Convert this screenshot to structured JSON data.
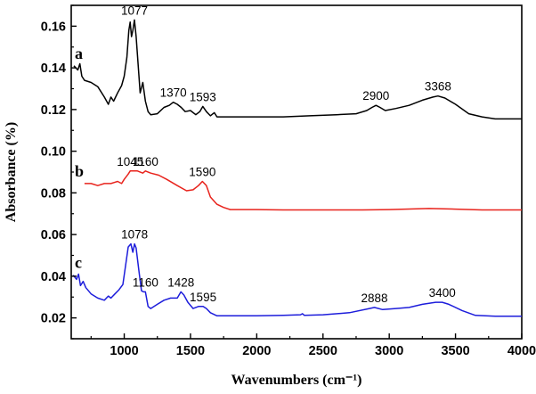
{
  "chart_data": {
    "type": "line",
    "xlabel": "Wavenumbers (cm⁻¹)",
    "ylabel": "Absorbance (%)",
    "xlim": [
      600,
      4000
    ],
    "ylim": [
      0.01,
      0.17
    ],
    "x_ticks": [
      1000,
      1500,
      2000,
      2500,
      3000,
      3500,
      4000
    ],
    "x_tick_labels": [
      "1000",
      "1500",
      "2000",
      "2500",
      "3000",
      "3500",
      "4000"
    ],
    "y_ticks": [
      0.02,
      0.04,
      0.06,
      0.08,
      0.1,
      0.12,
      0.14,
      0.16
    ],
    "y_tick_labels": [
      "0.02",
      "0.04",
      "0.06",
      "0.08",
      "0.10",
      "0.12",
      "0.14",
      "0.16"
    ],
    "grid": false,
    "legend": "none",
    "series": [
      {
        "label": "a",
        "color": "#000000",
        "points": [
          [
            620,
            0.141
          ],
          [
            650,
            0.139
          ],
          [
            665,
            0.142
          ],
          [
            680,
            0.136
          ],
          [
            700,
            0.134
          ],
          [
            750,
            0.133
          ],
          [
            800,
            0.131
          ],
          [
            850,
            0.126
          ],
          [
            880,
            0.1225
          ],
          [
            900,
            0.126
          ],
          [
            920,
            0.124
          ],
          [
            950,
            0.128
          ],
          [
            980,
            0.1315
          ],
          [
            1000,
            0.136
          ],
          [
            1020,
            0.145
          ],
          [
            1035,
            0.158
          ],
          [
            1045,
            0.162
          ],
          [
            1055,
            0.155
          ],
          [
            1065,
            0.158
          ],
          [
            1077,
            0.163
          ],
          [
            1090,
            0.155
          ],
          [
            1100,
            0.146
          ],
          [
            1120,
            0.128
          ],
          [
            1140,
            0.133
          ],
          [
            1160,
            0.124
          ],
          [
            1180,
            0.119
          ],
          [
            1200,
            0.1175
          ],
          [
            1250,
            0.118
          ],
          [
            1300,
            0.121
          ],
          [
            1340,
            0.122
          ],
          [
            1370,
            0.1235
          ],
          [
            1400,
            0.1225
          ],
          [
            1430,
            0.121
          ],
          [
            1460,
            0.119
          ],
          [
            1500,
            0.1195
          ],
          [
            1540,
            0.1175
          ],
          [
            1570,
            0.119
          ],
          [
            1593,
            0.1215
          ],
          [
            1620,
            0.119
          ],
          [
            1650,
            0.117
          ],
          [
            1680,
            0.1185
          ],
          [
            1700,
            0.1165
          ],
          [
            1800,
            0.1165
          ],
          [
            2000,
            0.1165
          ],
          [
            2200,
            0.1165
          ],
          [
            2400,
            0.117
          ],
          [
            2600,
            0.1175
          ],
          [
            2750,
            0.118
          ],
          [
            2830,
            0.1195
          ],
          [
            2870,
            0.121
          ],
          [
            2900,
            0.122
          ],
          [
            2930,
            0.121
          ],
          [
            2970,
            0.1195
          ],
          [
            3050,
            0.1205
          ],
          [
            3150,
            0.122
          ],
          [
            3250,
            0.1245
          ],
          [
            3330,
            0.126
          ],
          [
            3368,
            0.1265
          ],
          [
            3420,
            0.1255
          ],
          [
            3500,
            0.1225
          ],
          [
            3600,
            0.118
          ],
          [
            3700,
            0.1165
          ],
          [
            3800,
            0.1155
          ],
          [
            4000,
            0.1155
          ]
        ],
        "peak_labels": [
          {
            "x": 1077,
            "y": 0.163,
            "text": "1077"
          },
          {
            "x": 1370,
            "y": 0.1235,
            "text": "1370"
          },
          {
            "x": 1593,
            "y": 0.1215,
            "text": "1593"
          },
          {
            "x": 2900,
            "y": 0.122,
            "text": "2900"
          },
          {
            "x": 3368,
            "y": 0.1265,
            "text": "3368"
          }
        ]
      },
      {
        "label": "b",
        "color": "#e8231c",
        "points": [
          [
            700,
            0.0845
          ],
          [
            750,
            0.0845
          ],
          [
            800,
            0.0835
          ],
          [
            850,
            0.0845
          ],
          [
            900,
            0.0845
          ],
          [
            950,
            0.0855
          ],
          [
            980,
            0.0845
          ],
          [
            1000,
            0.0865
          ],
          [
            1030,
            0.089
          ],
          [
            1045,
            0.0905
          ],
          [
            1070,
            0.0905
          ],
          [
            1100,
            0.0905
          ],
          [
            1140,
            0.0895
          ],
          [
            1160,
            0.0905
          ],
          [
            1200,
            0.0895
          ],
          [
            1260,
            0.0885
          ],
          [
            1320,
            0.0865
          ],
          [
            1400,
            0.0835
          ],
          [
            1470,
            0.081
          ],
          [
            1520,
            0.0815
          ],
          [
            1560,
            0.0835
          ],
          [
            1590,
            0.0855
          ],
          [
            1620,
            0.0835
          ],
          [
            1650,
            0.078
          ],
          [
            1700,
            0.0745
          ],
          [
            1750,
            0.073
          ],
          [
            1800,
            0.072
          ],
          [
            2000,
            0.072
          ],
          [
            2200,
            0.0718
          ],
          [
            2500,
            0.0718
          ],
          [
            2800,
            0.0718
          ],
          [
            3000,
            0.072
          ],
          [
            3300,
            0.0725
          ],
          [
            3500,
            0.0722
          ],
          [
            3700,
            0.0718
          ],
          [
            4000,
            0.0718
          ]
        ],
        "peak_labels": [
          {
            "x": 1045,
            "y": 0.0905,
            "text": "1045"
          },
          {
            "x": 1160,
            "y": 0.0905,
            "text": "1160"
          },
          {
            "x": 1590,
            "y": 0.0855,
            "text": "1590"
          }
        ]
      },
      {
        "label": "c",
        "color": "#1d1ddb",
        "points": [
          [
            615,
            0.0405
          ],
          [
            640,
            0.0385
          ],
          [
            655,
            0.041
          ],
          [
            670,
            0.0355
          ],
          [
            690,
            0.0375
          ],
          [
            710,
            0.0345
          ],
          [
            750,
            0.0315
          ],
          [
            800,
            0.0295
          ],
          [
            850,
            0.0285
          ],
          [
            880,
            0.0305
          ],
          [
            900,
            0.0295
          ],
          [
            930,
            0.0315
          ],
          [
            960,
            0.0335
          ],
          [
            990,
            0.036
          ],
          [
            1010,
            0.045
          ],
          [
            1030,
            0.054
          ],
          [
            1050,
            0.0555
          ],
          [
            1065,
            0.0515
          ],
          [
            1078,
            0.0555
          ],
          [
            1090,
            0.0535
          ],
          [
            1110,
            0.043
          ],
          [
            1130,
            0.033
          ],
          [
            1145,
            0.0325
          ],
          [
            1160,
            0.0325
          ],
          [
            1180,
            0.0255
          ],
          [
            1200,
            0.0245
          ],
          [
            1250,
            0.0265
          ],
          [
            1300,
            0.0285
          ],
          [
            1350,
            0.0295
          ],
          [
            1400,
            0.0295
          ],
          [
            1428,
            0.0325
          ],
          [
            1450,
            0.031
          ],
          [
            1480,
            0.0275
          ],
          [
            1520,
            0.0245
          ],
          [
            1560,
            0.0255
          ],
          [
            1595,
            0.0255
          ],
          [
            1620,
            0.0245
          ],
          [
            1650,
            0.0225
          ],
          [
            1700,
            0.021
          ],
          [
            1800,
            0.021
          ],
          [
            2000,
            0.021
          ],
          [
            2200,
            0.0212
          ],
          [
            2330,
            0.0215
          ],
          [
            2345,
            0.022
          ],
          [
            2360,
            0.0212
          ],
          [
            2500,
            0.0215
          ],
          [
            2700,
            0.0225
          ],
          [
            2850,
            0.0245
          ],
          [
            2888,
            0.025
          ],
          [
            2950,
            0.024
          ],
          [
            3050,
            0.0245
          ],
          [
            3150,
            0.025
          ],
          [
            3250,
            0.0265
          ],
          [
            3350,
            0.0275
          ],
          [
            3400,
            0.0275
          ],
          [
            3450,
            0.0265
          ],
          [
            3550,
            0.0235
          ],
          [
            3650,
            0.0212
          ],
          [
            3800,
            0.0208
          ],
          [
            4000,
            0.0208
          ]
        ],
        "peak_labels": [
          {
            "x": 1078,
            "y": 0.0555,
            "text": "1078"
          },
          {
            "x": 1160,
            "y": 0.0325,
            "text": "1160"
          },
          {
            "x": 1428,
            "y": 0.0325,
            "text": "1428"
          },
          {
            "x": 1595,
            "y": 0.0255,
            "text": "1595"
          },
          {
            "x": 2888,
            "y": 0.025,
            "text": "2888"
          },
          {
            "x": 3400,
            "y": 0.0275,
            "text": "3400"
          }
        ]
      }
    ]
  }
}
